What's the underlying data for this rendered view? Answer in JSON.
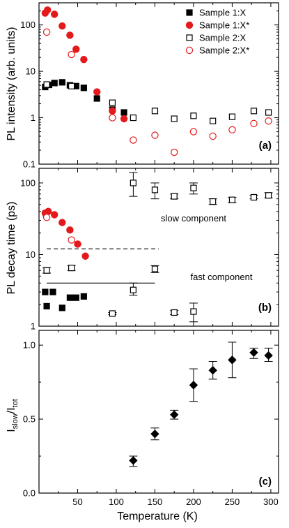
{
  "chart_data": [
    {
      "panel": "(a)",
      "type": "scatter",
      "ylabel": "PL intensity (arb. units)",
      "xlabel": "",
      "yscale": "log",
      "xlim": [
        0,
        310
      ],
      "ylim": [
        0.1,
        300
      ],
      "yticks": [
        "0.1",
        "1",
        "10",
        "100"
      ],
      "xticks": [
        "",
        "50",
        "100",
        "150",
        "200",
        "250",
        "300"
      ],
      "legend_position": "top-right",
      "series": [
        {
          "name": "Sample 1:X",
          "marker": "filled-square",
          "color": "#000000",
          "x": [
            8,
            13,
            20,
            30,
            40,
            48,
            58,
            75,
            95,
            110
          ],
          "y": [
            4.6,
            5.1,
            5.6,
            5.8,
            5.0,
            4.8,
            4.4,
            2.6,
            1.5,
            1.3
          ]
        },
        {
          "name": "Sample 1:X*",
          "marker": "filled-circle",
          "color": "#e31a1c",
          "x": [
            8,
            11,
            20,
            30,
            40,
            48,
            58,
            75,
            95,
            110
          ],
          "y": [
            180,
            210,
            170,
            95,
            60,
            30,
            18,
            3.6,
            1.4,
            0.95
          ]
        },
        {
          "name": "Sample 2:X",
          "marker": "open-square",
          "color": "#000000",
          "x": [
            10,
            42,
            95,
            122,
            150,
            175,
            200,
            225,
            250,
            278,
            297
          ],
          "y": [
            5.2,
            4.8,
            2.1,
            1.0,
            1.4,
            0.95,
            1.1,
            0.85,
            1.05,
            1.4,
            1.3
          ]
        },
        {
          "name": "Sample 2:X*",
          "marker": "open-circle",
          "color": "#e31a1c",
          "x": [
            10,
            42,
            95,
            122,
            150,
            175,
            200,
            225,
            250,
            278,
            297
          ],
          "y": [
            70,
            23,
            1.0,
            0.33,
            0.42,
            0.18,
            0.5,
            0.4,
            0.55,
            0.75,
            0.85
          ]
        }
      ]
    },
    {
      "panel": "(b)",
      "type": "scatter",
      "ylabel": "PL decay time (ps)",
      "xlabel": "",
      "yscale": "log",
      "xlim": [
        0,
        310
      ],
      "ylim": [
        1,
        160
      ],
      "yticks": [
        "1",
        "10",
        "100"
      ],
      "xticks": [
        "",
        "50",
        "100",
        "150",
        "200",
        "250",
        "300"
      ],
      "annotations": [
        "slow component",
        "fast component"
      ],
      "reference_lines": [
        {
          "style": "dashed",
          "y": 12,
          "x": [
            10,
            155
          ]
        },
        {
          "style": "solid",
          "y": 4,
          "x": [
            10,
            150
          ]
        }
      ],
      "series": [
        {
          "name": "Sample 1:X",
          "marker": "filled-square",
          "color": "#000000",
          "x": [
            8,
            10,
            18,
            30,
            40,
            48,
            58
          ],
          "y": [
            3.0,
            1.9,
            3.0,
            1.8,
            2.5,
            2.5,
            2.6
          ]
        },
        {
          "name": "Sample 1:X*",
          "marker": "filled-circle",
          "color": "#e31a1c",
          "x": [
            8,
            12,
            20,
            30,
            40,
            50,
            60
          ],
          "y": [
            38,
            40,
            36,
            28,
            22,
            14,
            9.5
          ]
        },
        {
          "name": "Sample 2:X (fast)",
          "marker": "open-square",
          "color": "#000000",
          "x": [
            10,
            42,
            95,
            122,
            150,
            175,
            200
          ],
          "y": [
            6.0,
            6.5,
            1.5,
            3.2,
            6.3,
            1.55,
            1.6
          ],
          "yerr_low": [
            5.5,
            6.0,
            1.45,
            2.7,
            5.6,
            1.45,
            1.15
          ],
          "yerr_high": [
            6.6,
            7.0,
            1.55,
            4.0,
            7.0,
            1.65,
            2.1
          ]
        },
        {
          "name": "Sample 2:X (slow)",
          "marker": "open-square",
          "color": "#000000",
          "x": [
            122,
            150,
            175,
            200,
            225,
            250,
            278,
            297
          ],
          "y": [
            100,
            80,
            65,
            85,
            55,
            58,
            63,
            67
          ],
          "yerr_low": [
            65,
            60,
            60,
            70,
            50,
            53,
            60,
            62
          ],
          "yerr_high": [
            140,
            100,
            70,
            100,
            60,
            63,
            67,
            73
          ]
        },
        {
          "name": "Sample 2:X*",
          "marker": "open-circle",
          "color": "#e31a1c",
          "x": [
            10,
            42
          ],
          "y": [
            33,
            16
          ]
        }
      ]
    },
    {
      "panel": "(c)",
      "type": "scatter",
      "ylabel_main": "I",
      "ylabel_sub1": "slow",
      "ylabel_mid": "/I",
      "ylabel_sub2": "tot",
      "xlabel": "Temperature (K)",
      "yscale": "linear",
      "xlim": [
        0,
        310
      ],
      "ylim": [
        0.0,
        1.1
      ],
      "yticks": [
        0.0,
        0.5,
        1.0
      ],
      "yticks_text": [
        "0.0",
        "0.5",
        "1.0"
      ],
      "xticks": [
        50,
        100,
        150,
        200,
        250,
        300
      ],
      "xticks_text": [
        "50",
        "100",
        "150",
        "200",
        "250",
        "300"
      ],
      "series": [
        {
          "name": "",
          "marker": "filled-diamond",
          "color": "#000000",
          "x": [
            122,
            150,
            175,
            200,
            225,
            250,
            278,
            297
          ],
          "y": [
            0.22,
            0.4,
            0.53,
            0.73,
            0.83,
            0.9,
            0.95,
            0.93
          ],
          "yerr_low": [
            0.18,
            0.36,
            0.5,
            0.62,
            0.77,
            0.78,
            0.91,
            0.89
          ],
          "yerr_high": [
            0.25,
            0.44,
            0.56,
            0.84,
            0.89,
            1.02,
            0.98,
            0.98
          ]
        }
      ]
    }
  ]
}
